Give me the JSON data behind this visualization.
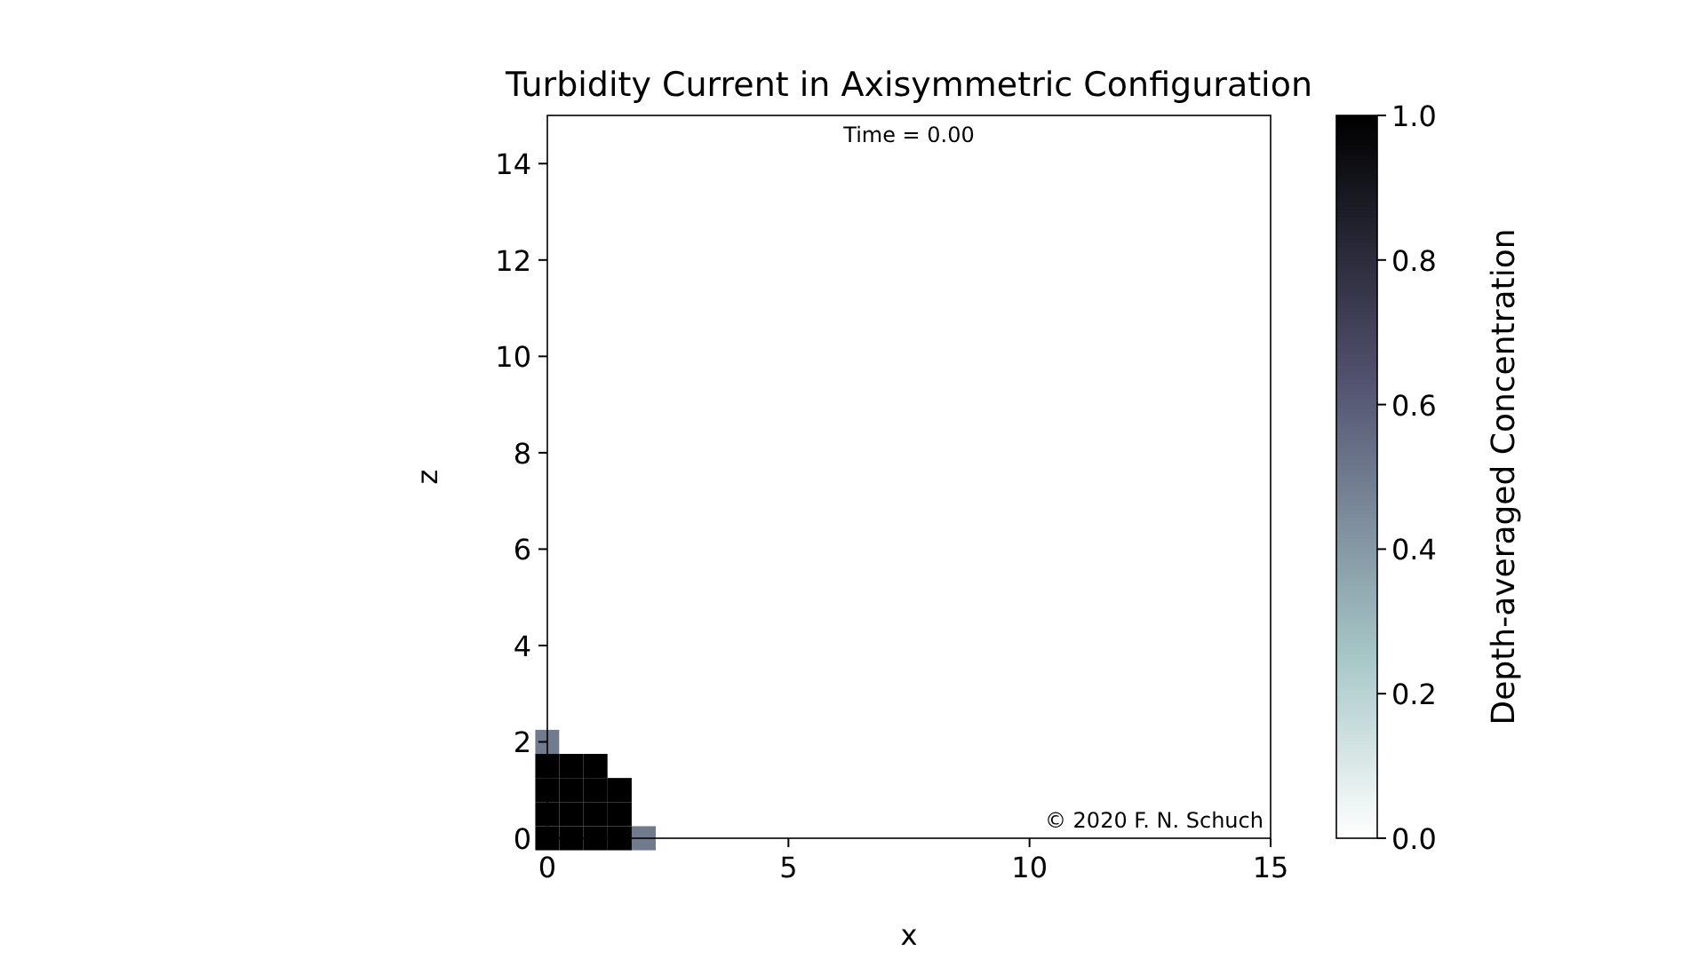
{
  "chart_data": {
    "type": "heatmap",
    "title": "Turbidity Current in Axisymmetric Configuration",
    "xlabel": "x",
    "ylabel": "z",
    "clabel": "Depth-averaged Concentration",
    "annotations": [
      "Time = 0.00",
      "© 2020 F. N. Schuch"
    ],
    "categories": [
      "0",
      null,
      null,
      null,
      null,
      null,
      null,
      null,
      null,
      null,
      "5",
      null,
      null,
      null,
      null,
      null,
      null,
      null,
      null,
      null,
      "10",
      null,
      null,
      null,
      null,
      null,
      null,
      null,
      null,
      null,
      "15"
    ],
    "y_categories": [
      null,
      null,
      "14",
      null,
      null,
      null,
      "12",
      null,
      null,
      null,
      "10",
      null,
      null,
      null,
      "8",
      null,
      null,
      null,
      "6",
      null,
      null,
      null,
      "4",
      null,
      null,
      null,
      "2",
      null,
      null,
      null,
      "0"
    ],
    "clim": [
      0,
      1
    ],
    "cticks": [
      {
        "value": 0,
        "label": "0.0"
      },
      0.2,
      0.4,
      0.6,
      0.8,
      {
        "value": 1,
        "label": "1.0"
      }
    ],
    "cells": [
      [
        0,
        0,
        0,
        0,
        0,
        0,
        0,
        0,
        0,
        0,
        0,
        0,
        0,
        0,
        0,
        0,
        0,
        0,
        0,
        0,
        0,
        0,
        0,
        0,
        0,
        0,
        0,
        0,
        0,
        0,
        0
      ],
      [
        0,
        0,
        0,
        0,
        0,
        0,
        0,
        0,
        0,
        0,
        0,
        0,
        0,
        0,
        0,
        0,
        0,
        0,
        0,
        0,
        0,
        0,
        0,
        0,
        0,
        0,
        0,
        0,
        0,
        0,
        0
      ],
      [
        0,
        0,
        0,
        0,
        0,
        0,
        0,
        0,
        0,
        0,
        0,
        0,
        0,
        0,
        0,
        0,
        0,
        0,
        0,
        0,
        0,
        0,
        0,
        0,
        0,
        0,
        0,
        0,
        0,
        0,
        0
      ],
      [
        0,
        0,
        0,
        0,
        0,
        0,
        0,
        0,
        0,
        0,
        0,
        0,
        0,
        0,
        0,
        0,
        0,
        0,
        0,
        0,
        0,
        0,
        0,
        0,
        0,
        0,
        0,
        0,
        0,
        0,
        0
      ],
      [
        0,
        0,
        0,
        0,
        0,
        0,
        0,
        0,
        0,
        0,
        0,
        0,
        0,
        0,
        0,
        0,
        0,
        0,
        0,
        0,
        0,
        0,
        0,
        0,
        0,
        0,
        0,
        0,
        0,
        0,
        0
      ],
      [
        0,
        0,
        0,
        0,
        0,
        0,
        0,
        0,
        0,
        0,
        0,
        0,
        0,
        0,
        0,
        0,
        0,
        0,
        0,
        0,
        0,
        0,
        0,
        0,
        0,
        0,
        0,
        0,
        0,
        0,
        0
      ],
      [
        0,
        0,
        0,
        0,
        0,
        0,
        0,
        0,
        0,
        0,
        0,
        0,
        0,
        0,
        0,
        0,
        0,
        0,
        0,
        0,
        0,
        0,
        0,
        0,
        0,
        0,
        0,
        0,
        0,
        0,
        0
      ],
      [
        0,
        0,
        0,
        0,
        0,
        0,
        0,
        0,
        0,
        0,
        0,
        0,
        0,
        0,
        0,
        0,
        0,
        0,
        0,
        0,
        0,
        0,
        0,
        0,
        0,
        0,
        0,
        0,
        0,
        0,
        0
      ],
      [
        0,
        0,
        0,
        0,
        0,
        0,
        0,
        0,
        0,
        0,
        0,
        0,
        0,
        0,
        0,
        0,
        0,
        0,
        0,
        0,
        0,
        0,
        0,
        0,
        0,
        0,
        0,
        0,
        0,
        0,
        0
      ],
      [
        0,
        0,
        0,
        0,
        0,
        0,
        0,
        0,
        0,
        0,
        0,
        0,
        0,
        0,
        0,
        0,
        0,
        0,
        0,
        0,
        0,
        0,
        0,
        0,
        0,
        0,
        0,
        0,
        0,
        0,
        0
      ],
      [
        0,
        0,
        0,
        0,
        0,
        0,
        0,
        0,
        0,
        0,
        0,
        0,
        0,
        0,
        0,
        0,
        0,
        0,
        0,
        0,
        0,
        0,
        0,
        0,
        0,
        0,
        0,
        0,
        0,
        0,
        0
      ],
      [
        0,
        0,
        0,
        0,
        0,
        0,
        0,
        0,
        0,
        0,
        0,
        0,
        0,
        0,
        0,
        0,
        0,
        0,
        0,
        0,
        0,
        0,
        0,
        0,
        0,
        0,
        0,
        0,
        0,
        0,
        0
      ],
      [
        0,
        0,
        0,
        0,
        0,
        0,
        0,
        0,
        0,
        0,
        0,
        0,
        0,
        0,
        0,
        0,
        0,
        0,
        0,
        0,
        0,
        0,
        0,
        0,
        0,
        0,
        0,
        0,
        0,
        0,
        0
      ],
      [
        0,
        0,
        0,
        0,
        0,
        0,
        0,
        0,
        0,
        0,
        0,
        0,
        0,
        0,
        0,
        0,
        0,
        0,
        0,
        0,
        0,
        0,
        0,
        0,
        0,
        0,
        0,
        0,
        0,
        0,
        0
      ],
      [
        0,
        0,
        0,
        0,
        0,
        0,
        0,
        0,
        0,
        0,
        0,
        0,
        0,
        0,
        0,
        0,
        0,
        0,
        0,
        0,
        0,
        0,
        0,
        0,
        0,
        0,
        0,
        0,
        0,
        0,
        0
      ],
      [
        0,
        0,
        0,
        0,
        0,
        0,
        0,
        0,
        0,
        0,
        0,
        0,
        0,
        0,
        0,
        0,
        0,
        0,
        0,
        0,
        0,
        0,
        0,
        0,
        0,
        0,
        0,
        0,
        0,
        0,
        0
      ],
      [
        0,
        0,
        0,
        0,
        0,
        0,
        0,
        0,
        0,
        0,
        0,
        0,
        0,
        0,
        0,
        0,
        0,
        0,
        0,
        0,
        0,
        0,
        0,
        0,
        0,
        0,
        0,
        0,
        0,
        0,
        0
      ],
      [
        0,
        0,
        0,
        0,
        0,
        0,
        0,
        0,
        0,
        0,
        0,
        0,
        0,
        0,
        0,
        0,
        0,
        0,
        0,
        0,
        0,
        0,
        0,
        0,
        0,
        0,
        0,
        0,
        0,
        0,
        0
      ],
      [
        0,
        0,
        0,
        0,
        0,
        0,
        0,
        0,
        0,
        0,
        0,
        0,
        0,
        0,
        0,
        0,
        0,
        0,
        0,
        0,
        0,
        0,
        0,
        0,
        0,
        0,
        0,
        0,
        0,
        0,
        0
      ],
      [
        0,
        0,
        0,
        0,
        0,
        0,
        0,
        0,
        0,
        0,
        0,
        0,
        0,
        0,
        0,
        0,
        0,
        0,
        0,
        0,
        0,
        0,
        0,
        0,
        0,
        0,
        0,
        0,
        0,
        0,
        0
      ],
      [
        0,
        0,
        0,
        0,
        0,
        0,
        0,
        0,
        0,
        0,
        0,
        0,
        0,
        0,
        0,
        0,
        0,
        0,
        0,
        0,
        0,
        0,
        0,
        0,
        0,
        0,
        0,
        0,
        0,
        0,
        0
      ],
      [
        0,
        0,
        0,
        0,
        0,
        0,
        0,
        0,
        0,
        0,
        0,
        0,
        0,
        0,
        0,
        0,
        0,
        0,
        0,
        0,
        0,
        0,
        0,
        0,
        0,
        0,
        0,
        0,
        0,
        0,
        0
      ],
      [
        0,
        0,
        0,
        0,
        0,
        0,
        0,
        0,
        0,
        0,
        0,
        0,
        0,
        0,
        0,
        0,
        0,
        0,
        0,
        0,
        0,
        0,
        0,
        0,
        0,
        0,
        0,
        0,
        0,
        0,
        0
      ],
      [
        0,
        0,
        0,
        0,
        0,
        0,
        0,
        0,
        0,
        0,
        0,
        0,
        0,
        0,
        0,
        0,
        0,
        0,
        0,
        0,
        0,
        0,
        0,
        0,
        0,
        0,
        0,
        0,
        0,
        0,
        0
      ],
      [
        0,
        0,
        0,
        0,
        0,
        0,
        0,
        0,
        0,
        0,
        0,
        0,
        0,
        0,
        0,
        0,
        0,
        0,
        0,
        0,
        0,
        0,
        0,
        0,
        0,
        0,
        0,
        0,
        0,
        0,
        0
      ],
      [
        0,
        0,
        0,
        0,
        0,
        0,
        0,
        0,
        0,
        0,
        0,
        0,
        0,
        0,
        0,
        0,
        0,
        0,
        0,
        0,
        0,
        0,
        0,
        0,
        0,
        0,
        0,
        0,
        0,
        0,
        0
      ],
      [
        0.5,
        0,
        0,
        0,
        0,
        0,
        0,
        0,
        0,
        0,
        0,
        0,
        0,
        0,
        0,
        0,
        0,
        0,
        0,
        0,
        0,
        0,
        0,
        0,
        0,
        0,
        0,
        0,
        0,
        0,
        0
      ],
      [
        1,
        1,
        1,
        0,
        0,
        0,
        0,
        0,
        0,
        0,
        0,
        0,
        0,
        0,
        0,
        0,
        0,
        0,
        0,
        0,
        0,
        0,
        0,
        0,
        0,
        0,
        0,
        0,
        0,
        0,
        0
      ],
      [
        1,
        1,
        1,
        1,
        0,
        0,
        0,
        0,
        0,
        0,
        0,
        0,
        0,
        0,
        0,
        0,
        0,
        0,
        0,
        0,
        0,
        0,
        0,
        0,
        0,
        0,
        0,
        0,
        0,
        0,
        0
      ],
      [
        1,
        1,
        1,
        1,
        0,
        0,
        0,
        0,
        0,
        0,
        0,
        0,
        0,
        0,
        0,
        0,
        0,
        0,
        0,
        0,
        0,
        0,
        0,
        0,
        0,
        0,
        0,
        0,
        0,
        0,
        0
      ],
      [
        1,
        1,
        1,
        1,
        0.5,
        0,
        0,
        0,
        0,
        0,
        0,
        0,
        0,
        0,
        0,
        0,
        0,
        0,
        0,
        0,
        0,
        0,
        0,
        0,
        0,
        0,
        0,
        0,
        0,
        0,
        0
      ]
    ]
  }
}
